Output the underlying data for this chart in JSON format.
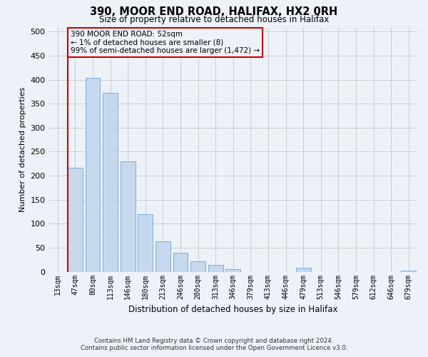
{
  "title": "390, MOOR END ROAD, HALIFAX, HX2 0RH",
  "subtitle": "Size of property relative to detached houses in Halifax",
  "xlabel": "Distribution of detached houses by size in Halifax",
  "ylabel": "Number of detached properties",
  "bin_labels": [
    "13sqm",
    "47sqm",
    "80sqm",
    "113sqm",
    "146sqm",
    "180sqm",
    "213sqm",
    "246sqm",
    "280sqm",
    "313sqm",
    "346sqm",
    "379sqm",
    "413sqm",
    "446sqm",
    "479sqm",
    "513sqm",
    "546sqm",
    "579sqm",
    "612sqm",
    "646sqm",
    "679sqm"
  ],
  "bar_values": [
    0,
    217,
    403,
    372,
    230,
    120,
    63,
    40,
    22,
    15,
    5,
    0,
    0,
    0,
    8,
    0,
    0,
    0,
    0,
    0,
    3
  ],
  "bar_color": "#c5d8ee",
  "bar_edge_color": "#7bafd4",
  "grid_color": "#cccccc",
  "vline_color": "#cc0000",
  "annotation_line1": "390 MOOR END ROAD: 52sqm",
  "annotation_line2": "← 1% of detached houses are smaller (8)",
  "annotation_line3": "99% of semi-detached houses are larger (1,472) →",
  "annotation_box_edge": "#cc0000",
  "ylim": [
    0,
    510
  ],
  "yticks": [
    0,
    50,
    100,
    150,
    200,
    250,
    300,
    350,
    400,
    450,
    500
  ],
  "footer_line1": "Contains HM Land Registry data © Crown copyright and database right 2024.",
  "footer_line2": "Contains public sector information licensed under the Open Government Licence v3.0.",
  "bg_color": "#edf2f9"
}
